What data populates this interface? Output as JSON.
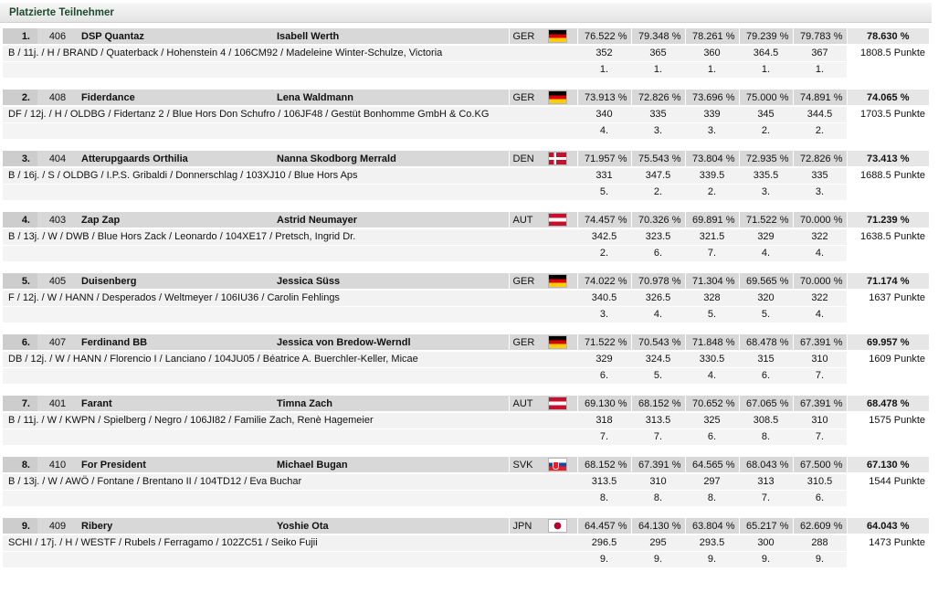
{
  "section_title": "Platzierte Teilnehmer",
  "entries": [
    {
      "rank": "1.",
      "number": "406",
      "horse": "DSP Quantaz",
      "rider": "Isabell Werth",
      "nation": "GER",
      "flag": "ger",
      "scores": [
        "76.522 %",
        "79.348 %",
        "78.261 %",
        "79.239 %",
        "79.783 %"
      ],
      "total": "78.630 %",
      "description": "B / 11j. / H / BRAND / Quaterback / Hohenstein 4 / 106CM92 / Madeleine Winter-Schulze, Victoria",
      "points": [
        "352",
        "365",
        "360",
        "364.5",
        "367"
      ],
      "total_points": "1808.5 Punkte",
      "placings": [
        "1.",
        "1.",
        "1.",
        "1.",
        "1."
      ]
    },
    {
      "rank": "2.",
      "number": "408",
      "horse": "Fiderdance",
      "rider": "Lena Waldmann",
      "nation": "GER",
      "flag": "ger",
      "scores": [
        "73.913 %",
        "72.826 %",
        "73.696 %",
        "75.000 %",
        "74.891 %"
      ],
      "total": "74.065 %",
      "description": "DF / 12j. / H / OLDBG / Fidertanz 2 / Blue Hors Don Schufro / 106JF48 / Gestüt Bonhomme GmbH & Co.KG",
      "points": [
        "340",
        "335",
        "339",
        "345",
        "344.5"
      ],
      "total_points": "1703.5 Punkte",
      "placings": [
        "4.",
        "3.",
        "3.",
        "2.",
        "2."
      ]
    },
    {
      "rank": "3.",
      "number": "404",
      "horse": "Atterupgaards Orthilia",
      "rider": "Nanna Skodborg Merrald",
      "nation": "DEN",
      "flag": "den",
      "scores": [
        "71.957 %",
        "75.543 %",
        "73.804 %",
        "72.935 %",
        "72.826 %"
      ],
      "total": "73.413 %",
      "description": "B / 16j. / S / OLDBG / I.P.S. Gribaldi / Donnerschlag / 103XJ10 / Blue Hors Aps",
      "points": [
        "331",
        "347.5",
        "339.5",
        "335.5",
        "335"
      ],
      "total_points": "1688.5 Punkte",
      "placings": [
        "5.",
        "2.",
        "2.",
        "3.",
        "3."
      ]
    },
    {
      "rank": "4.",
      "number": "403",
      "horse": "Zap Zap",
      "rider": "Astrid Neumayer",
      "nation": "AUT",
      "flag": "aut",
      "scores": [
        "74.457 %",
        "70.326 %",
        "69.891 %",
        "71.522 %",
        "70.000 %"
      ],
      "total": "71.239 %",
      "description": "B / 13j. / W / DWB / Blue Hors Zack / Leonardo / 104XE17 / Pretsch, Ingrid Dr.",
      "points": [
        "342.5",
        "323.5",
        "321.5",
        "329",
        "322"
      ],
      "total_points": "1638.5 Punkte",
      "placings": [
        "2.",
        "6.",
        "7.",
        "4.",
        "4."
      ]
    },
    {
      "rank": "5.",
      "number": "405",
      "horse": "Duisenberg",
      "rider": "Jessica Süss",
      "nation": "GER",
      "flag": "ger",
      "scores": [
        "74.022 %",
        "70.978 %",
        "71.304 %",
        "69.565 %",
        "70.000 %"
      ],
      "total": "71.174 %",
      "description": "F / 12j. / W / HANN / Desperados / Weltmeyer / 106IU36 / Carolin Fehlings",
      "points": [
        "340.5",
        "326.5",
        "328",
        "320",
        "322"
      ],
      "total_points": "1637 Punkte",
      "placings": [
        "3.",
        "4.",
        "5.",
        "5.",
        "4."
      ]
    },
    {
      "rank": "6.",
      "number": "407",
      "horse": "Ferdinand BB",
      "rider": "Jessica von Bredow-Werndl",
      "nation": "GER",
      "flag": "ger",
      "scores": [
        "71.522 %",
        "70.543 %",
        "71.848 %",
        "68.478 %",
        "67.391 %"
      ],
      "total": "69.957 %",
      "description": "DB / 12j. / W / HANN / Florencio I / Lanciano / 104JU05 / Béatrice A. Buerchler-Keller, Micae",
      "points": [
        "329",
        "324.5",
        "330.5",
        "315",
        "310"
      ],
      "total_points": "1609 Punkte",
      "placings": [
        "6.",
        "5.",
        "4.",
        "6.",
        "7."
      ]
    },
    {
      "rank": "7.",
      "number": "401",
      "horse": "Farant",
      "rider": "Timna Zach",
      "nation": "AUT",
      "flag": "aut",
      "scores": [
        "69.130 %",
        "68.152 %",
        "70.652 %",
        "67.065 %",
        "67.391 %"
      ],
      "total": "68.478 %",
      "description": "B / 11j. / W / KWPN / Spielberg / Negro / 106JI82 / Familie Zach, Renè Hagemeier",
      "points": [
        "318",
        "313.5",
        "325",
        "308.5",
        "310"
      ],
      "total_points": "1575 Punkte",
      "placings": [
        "7.",
        "7.",
        "6.",
        "8.",
        "7."
      ]
    },
    {
      "rank": "8.",
      "number": "410",
      "horse": "For President",
      "rider": "Michael Bugan",
      "nation": "SVK",
      "flag": "svk",
      "scores": [
        "68.152 %",
        "67.391 %",
        "64.565 %",
        "68.043 %",
        "67.500 %"
      ],
      "total": "67.130 %",
      "description": "B / 13j. / W / AWÖ / Fontane / Brentano II / 104TD12 / Eva Buchar",
      "points": [
        "313.5",
        "310",
        "297",
        "313",
        "310.5"
      ],
      "total_points": "1544 Punkte",
      "placings": [
        "8.",
        "8.",
        "8.",
        "7.",
        "6."
      ]
    },
    {
      "rank": "9.",
      "number": "409",
      "horse": "Ribery",
      "rider": "Yoshie Ota",
      "nation": "JPN",
      "flag": "jpn",
      "scores": [
        "64.457 %",
        "64.130 %",
        "63.804 %",
        "65.217 %",
        "62.609 %"
      ],
      "total": "64.043 %",
      "description": "SCHI / 17j. / H / WESTF / Rubels / Ferragamo / 102ZC51 / Seiko Fujii",
      "points": [
        "296.5",
        "295",
        "293.5",
        "300",
        "288"
      ],
      "total_points": "1473 Punkte",
      "placings": [
        "9.",
        "9.",
        "9.",
        "9.",
        "9."
      ]
    }
  ]
}
